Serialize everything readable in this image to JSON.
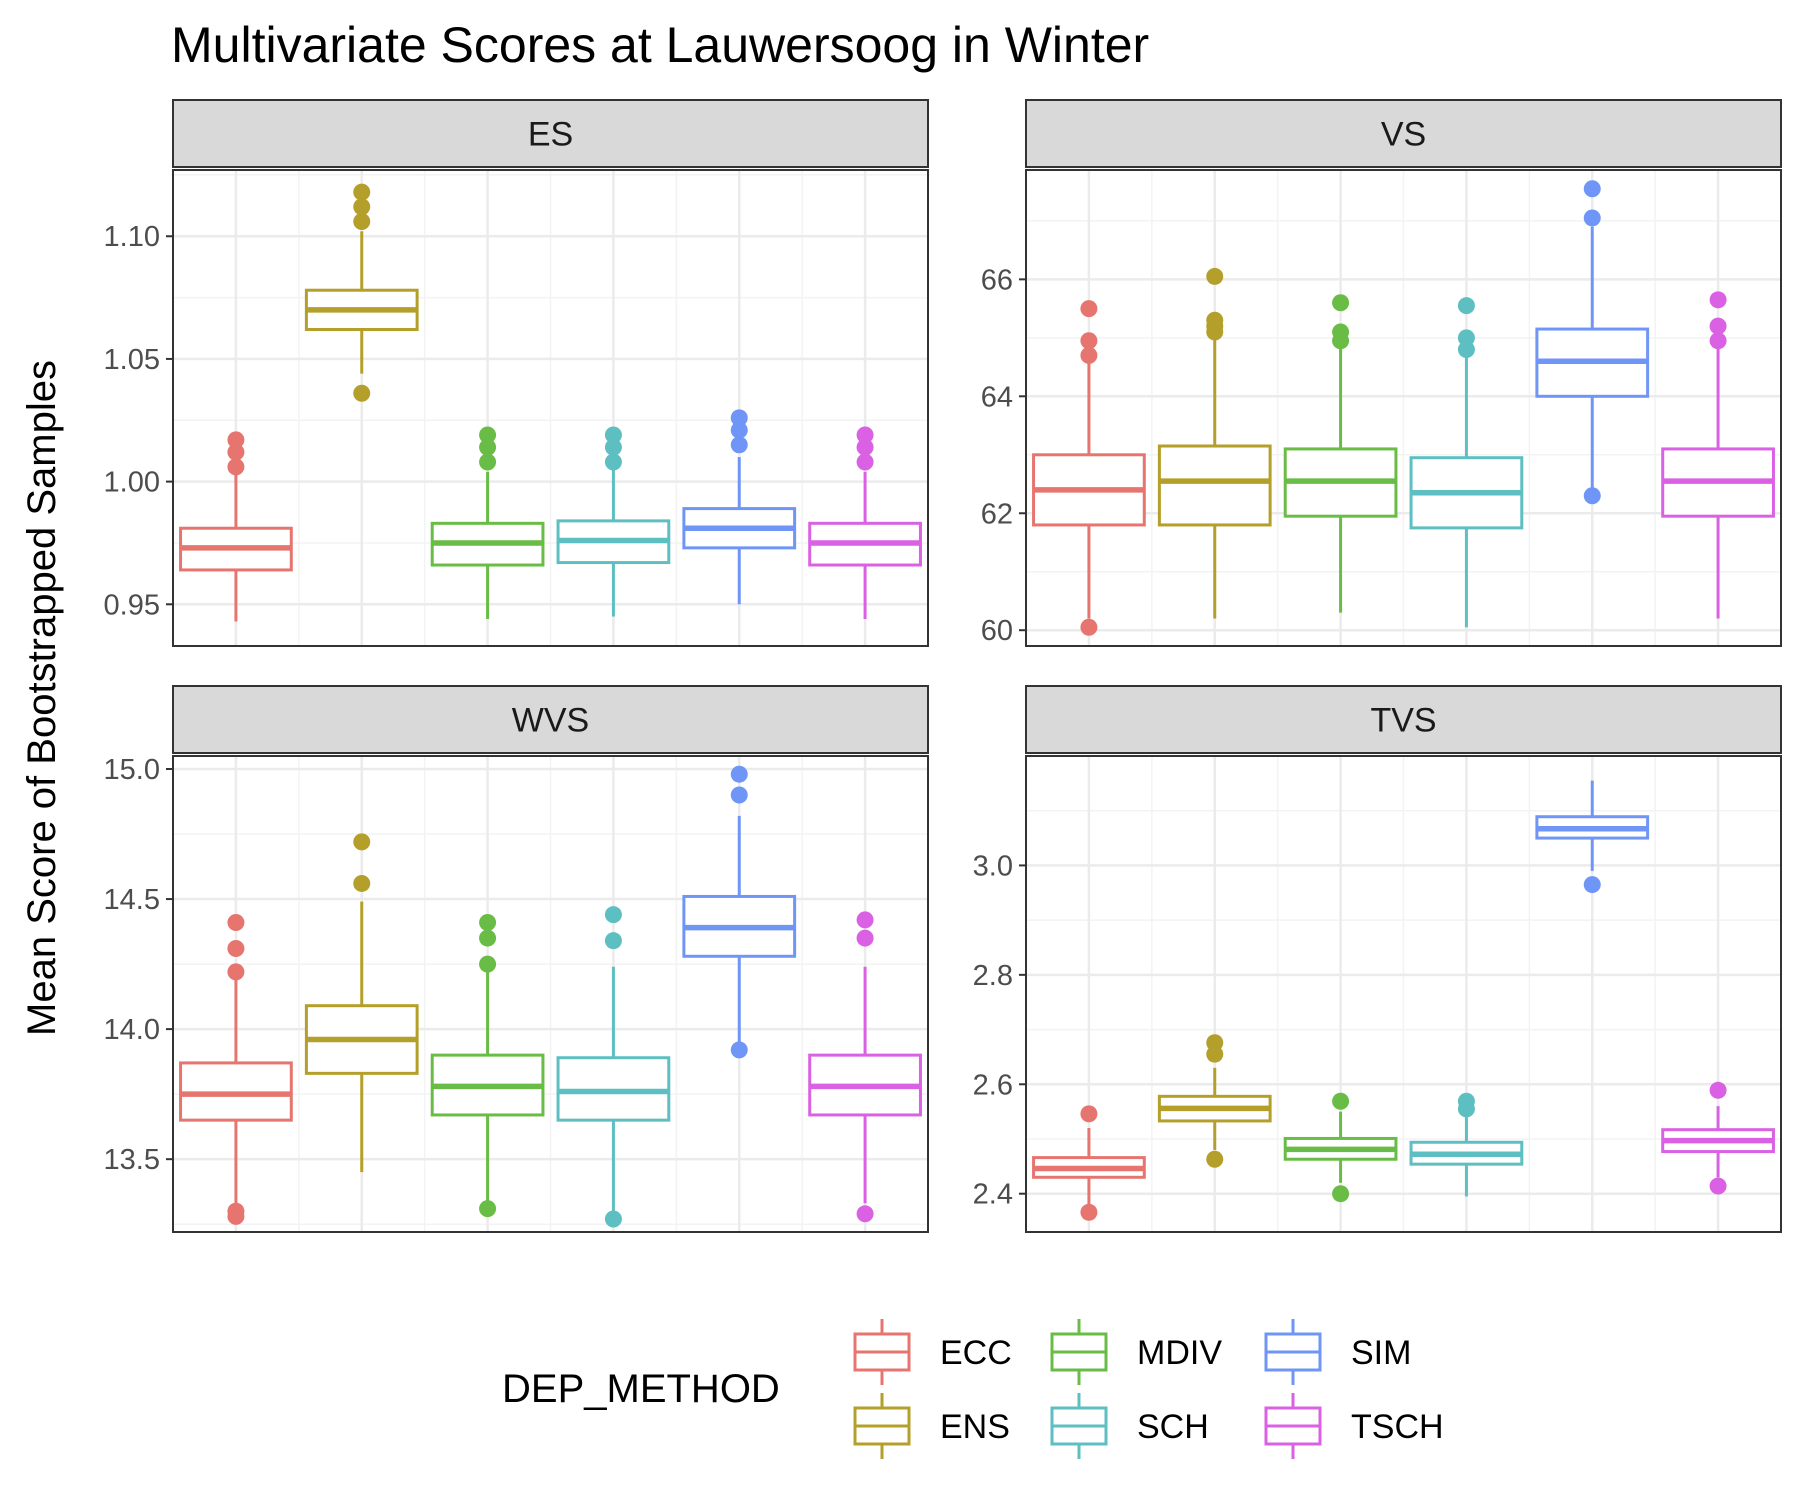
{
  "chart_data": {
    "type": "boxplot",
    "title": "Multivariate Scores at Lauwersoog in Winter",
    "ylabel": "Mean Score of Bootstrapped Samples",
    "legend": {
      "title": "DEP_METHOD",
      "placement": "bottom",
      "entries": [
        {
          "name": "ECC",
          "color": "#E7756F"
        },
        {
          "name": "ENS",
          "color": "#B49F2A"
        },
        {
          "name": "MDIV",
          "color": "#69BC45"
        },
        {
          "name": "SCH",
          "color": "#5DBFC2"
        },
        {
          "name": "SIM",
          "color": "#6F95F6"
        },
        {
          "name": "TSCH",
          "color": "#DA61E3"
        }
      ]
    },
    "grid": true,
    "panels": [
      {
        "name": "ES",
        "ylim": [
          0.933,
          1.127
        ],
        "yticks": [
          0.95,
          1.0,
          1.05,
          1.1
        ],
        "ytick_labels": [
          "0.95",
          "1.00",
          "1.05",
          "1.10"
        ],
        "boxes": [
          {
            "method": "ECC",
            "q1": 0.964,
            "median": 0.973,
            "q3": 0.981,
            "whisker_low": 0.943,
            "whisker_high": 1.004,
            "outliers": [
              1.017,
              1.012,
              1.006
            ]
          },
          {
            "method": "ENS",
            "q1": 1.062,
            "median": 1.07,
            "q3": 1.078,
            "whisker_low": 1.044,
            "whisker_high": 1.102,
            "outliers": [
              1.118,
              1.112,
              1.106,
              1.036
            ]
          },
          {
            "method": "MDIV",
            "q1": 0.966,
            "median": 0.975,
            "q3": 0.983,
            "whisker_low": 0.944,
            "whisker_high": 1.004,
            "outliers": [
              1.019,
              1.014,
              1.008
            ]
          },
          {
            "method": "SCH",
            "q1": 0.967,
            "median": 0.976,
            "q3": 0.984,
            "whisker_low": 0.945,
            "whisker_high": 1.005,
            "outliers": [
              1.019,
              1.014,
              1.008
            ]
          },
          {
            "method": "SIM",
            "q1": 0.973,
            "median": 0.981,
            "q3": 0.989,
            "whisker_low": 0.95,
            "whisker_high": 1.01,
            "outliers": [
              1.026,
              1.021,
              1.015
            ]
          },
          {
            "method": "TSCH",
            "q1": 0.966,
            "median": 0.975,
            "q3": 0.983,
            "whisker_low": 0.944,
            "whisker_high": 1.004,
            "outliers": [
              1.019,
              1.014,
              1.008
            ]
          }
        ]
      },
      {
        "name": "VS",
        "ylim": [
          59.73,
          67.87
        ],
        "yticks": [
          60,
          62,
          64,
          66
        ],
        "ytick_labels": [
          "60",
          "62",
          "64",
          "66"
        ],
        "boxes": [
          {
            "method": "ECC",
            "q1": 61.8,
            "median": 62.4,
            "q3": 63.0,
            "whisker_low": 60.2,
            "whisker_high": 64.6,
            "outliers": [
              65.5,
              64.95,
              64.7,
              60.05
            ]
          },
          {
            "method": "ENS",
            "q1": 61.8,
            "median": 62.55,
            "q3": 63.15,
            "whisker_low": 60.2,
            "whisker_high": 65.1,
            "outliers": [
              66.05,
              65.3,
              65.2,
              65.1
            ]
          },
          {
            "method": "MDIV",
            "q1": 61.95,
            "median": 62.55,
            "q3": 63.1,
            "whisker_low": 60.3,
            "whisker_high": 64.9,
            "outliers": [
              65.6,
              65.1,
              64.95
            ]
          },
          {
            "method": "SCH",
            "q1": 61.75,
            "median": 62.35,
            "q3": 62.95,
            "whisker_low": 60.05,
            "whisker_high": 64.7,
            "outliers": [
              65.55,
              65.0,
              64.8
            ]
          },
          {
            "method": "SIM",
            "q1": 64.0,
            "median": 64.6,
            "q3": 65.15,
            "whisker_low": 62.4,
            "whisker_high": 66.9,
            "outliers": [
              67.55,
              67.05,
              62.3
            ]
          },
          {
            "method": "TSCH",
            "q1": 61.95,
            "median": 62.55,
            "q3": 63.1,
            "whisker_low": 60.2,
            "whisker_high": 64.9,
            "outliers": [
              65.65,
              65.2,
              64.95
            ]
          }
        ]
      },
      {
        "name": "WVS",
        "ylim": [
          13.22,
          15.05
        ],
        "yticks": [
          13.5,
          14.0,
          14.5,
          15.0
        ],
        "ytick_labels": [
          "13.5",
          "14.0",
          "14.5",
          "15.0"
        ],
        "boxes": [
          {
            "method": "ECC",
            "q1": 13.65,
            "median": 13.75,
            "q3": 13.87,
            "whisker_low": 13.33,
            "whisker_high": 14.2,
            "outliers": [
              14.41,
              14.31,
              14.22,
              13.3,
              13.28
            ]
          },
          {
            "method": "ENS",
            "q1": 13.83,
            "median": 13.96,
            "q3": 14.09,
            "whisker_low": 13.45,
            "whisker_high": 14.49,
            "outliers": [
              14.72,
              14.56
            ]
          },
          {
            "method": "MDIV",
            "q1": 13.67,
            "median": 13.78,
            "q3": 13.9,
            "whisker_low": 13.33,
            "whisker_high": 14.22,
            "outliers": [
              14.41,
              14.35,
              14.25,
              13.31
            ]
          },
          {
            "method": "SCH",
            "q1": 13.65,
            "median": 13.76,
            "q3": 13.89,
            "whisker_low": 13.3,
            "whisker_high": 14.24,
            "outliers": [
              14.44,
              14.34,
              13.27
            ]
          },
          {
            "method": "SIM",
            "q1": 14.28,
            "median": 14.39,
            "q3": 14.51,
            "whisker_low": 13.95,
            "whisker_high": 14.82,
            "outliers": [
              14.98,
              14.9,
              13.92
            ]
          },
          {
            "method": "TSCH",
            "q1": 13.67,
            "median": 13.78,
            "q3": 13.9,
            "whisker_low": 13.33,
            "whisker_high": 14.24,
            "outliers": [
              14.42,
              14.35,
              13.29
            ]
          }
        ]
      },
      {
        "name": "TVS",
        "ylim": [
          2.33,
          3.2
        ],
        "yticks": [
          2.4,
          2.6,
          2.8,
          3.0
        ],
        "ytick_labels": [
          "2.4",
          "2.6",
          "2.8",
          "3.0"
        ],
        "boxes": [
          {
            "method": "ECC",
            "q1": 2.43,
            "median": 2.446,
            "q3": 2.466,
            "whisker_low": 2.38,
            "whisker_high": 2.52,
            "outliers": [
              2.546,
              2.366
            ]
          },
          {
            "method": "ENS",
            "q1": 2.533,
            "median": 2.556,
            "q3": 2.578,
            "whisker_low": 2.48,
            "whisker_high": 2.63,
            "outliers": [
              2.676,
              2.655,
              2.463
            ]
          },
          {
            "method": "MDIV",
            "q1": 2.463,
            "median": 2.481,
            "q3": 2.501,
            "whisker_low": 2.42,
            "whisker_high": 2.55,
            "outliers": [
              2.569,
              2.4
            ]
          },
          {
            "method": "SCH",
            "q1": 2.454,
            "median": 2.472,
            "q3": 2.494,
            "whisker_low": 2.395,
            "whisker_high": 2.54,
            "outliers": [
              2.569,
              2.555
            ]
          },
          {
            "method": "SIM",
            "q1": 3.05,
            "median": 3.067,
            "q3": 3.089,
            "whisker_low": 2.99,
            "whisker_high": 3.155,
            "outliers": [
              2.965
            ]
          },
          {
            "method": "TSCH",
            "q1": 2.477,
            "median": 2.497,
            "q3": 2.517,
            "whisker_low": 2.43,
            "whisker_high": 2.56,
            "outliers": [
              2.589,
              2.414
            ]
          }
        ]
      }
    ]
  }
}
